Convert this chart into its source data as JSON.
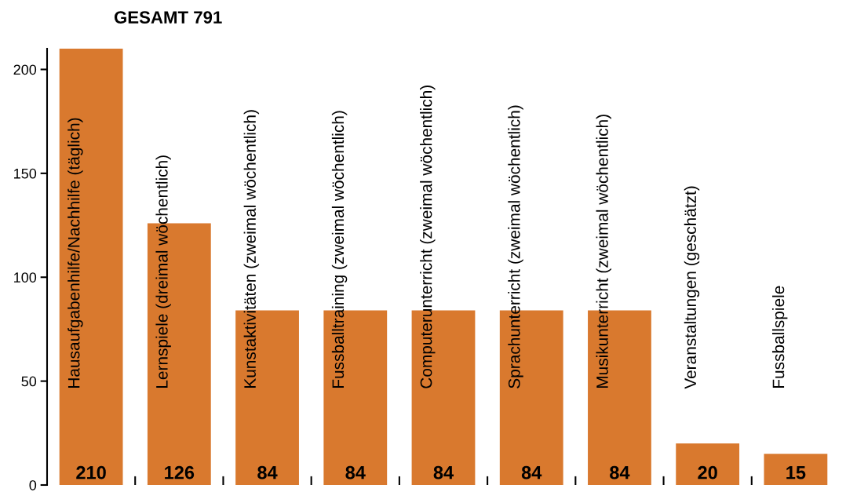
{
  "chart_data": {
    "type": "bar",
    "title": "GESAMT 791",
    "categories": [
      "Hausaufgabenhilfe/Nachhilfe (täglich)",
      "Lernspiele (dreimal wöchentlich)",
      "Kunstaktivitäten (zweimal wöchentlich)",
      "Fussballtraining (zweimal wöchentlich)",
      "Computerunterricht (zweimal wöchentlich)",
      "Sprachunterricht (zweimal wöchentlich)",
      "Musikunterricht (zweimal wöchentlich)",
      "Veranstaltungen (geschätzt)",
      "Fussballspiele"
    ],
    "values": [
      210,
      126,
      84,
      84,
      84,
      84,
      84,
      20,
      15
    ],
    "color": "#d9792e",
    "ylim": [
      0,
      210
    ],
    "yticks": [
      0,
      50,
      100,
      150,
      200
    ],
    "data_labels": true,
    "grid": false,
    "legend": false
  }
}
